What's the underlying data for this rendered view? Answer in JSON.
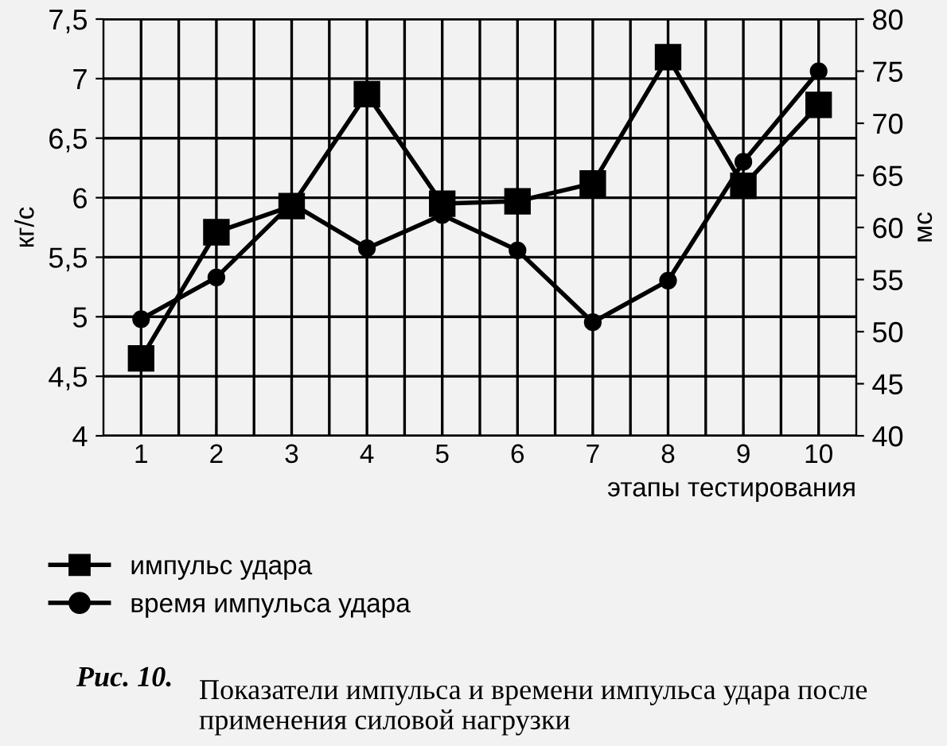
{
  "chart_data": {
    "type": "line",
    "categories": [
      "1",
      "2",
      "3",
      "4",
      "5",
      "6",
      "7",
      "8",
      "9",
      "10"
    ],
    "xlabel": "этапы тестирования",
    "ylabel": "кг/с",
    "y2label": "мс",
    "ylim": [
      4,
      7.5
    ],
    "yticks": [
      4,
      {
        "value": 4.5,
        "label": "4,5"
      },
      5,
      {
        "value": 5.5,
        "label": "5,5"
      },
      6,
      {
        "value": 6.5,
        "label": "6,5"
      },
      7,
      {
        "value": 7.5,
        "label": "7,5"
      }
    ],
    "y2lim": [
      40,
      80
    ],
    "y2ticks": [
      40,
      45,
      50,
      55,
      60,
      65,
      70,
      75,
      80
    ],
    "series": [
      {
        "name": "импульс удара",
        "color": "#000000",
        "marker": "square",
        "values": [
          4.65,
          5.71,
          5.93,
          6.87,
          5.95,
          5.97,
          6.12,
          7.18,
          6.1,
          6.78
        ]
      },
      {
        "name": "время импульса удара",
        "color": "#000000",
        "marker": "circle",
        "axis": "y2",
        "values": [
          51.2,
          55.2,
          62.3,
          58.0,
          61.2,
          57.8,
          50.9,
          54.9,
          66.3,
          75.0
        ]
      }
    ],
    "grid": true,
    "legend": "bottom left",
    "line_style": "solid",
    "annotations": [
      "Рис. 10.",
      "Показатели импульса и времени импульса удара после применения силовой нагрузки"
    ]
  }
}
